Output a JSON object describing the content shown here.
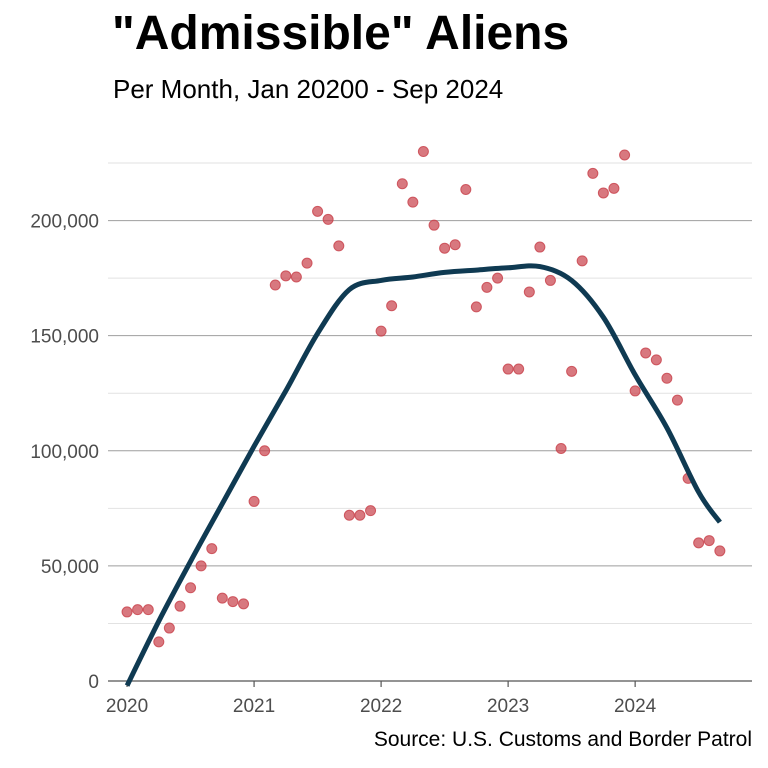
{
  "chart_data": {
    "type": "scatter",
    "title": "\"Admissible\" Aliens",
    "subtitle": "Per Month, Jan 20200 - Sep 2024",
    "source": "Source: U.S. Customs and Border Patrol",
    "xlabel": "",
    "ylabel": "",
    "xlim": [
      2019.85,
      2024.92
    ],
    "ylim": [
      0,
      235000
    ],
    "x_ticks": [
      2020,
      2021,
      2022,
      2023,
      2024
    ],
    "x_tick_labels": [
      "2020",
      "2021",
      "2022",
      "2023",
      "2024"
    ],
    "y_ticks": [
      0,
      50000,
      100000,
      150000,
      200000
    ],
    "y_tick_labels": [
      "0",
      "50,000",
      "100,000",
      "150,000",
      "200,000"
    ],
    "y_minor_ticks": [
      25000,
      75000,
      125000,
      175000,
      225000
    ],
    "grid": true,
    "legend": "none",
    "colors": {
      "points": "#c9444d",
      "trend": "#0f3a52",
      "grid_major": "#9e9e9e",
      "grid_minor": "#e2e2e2"
    },
    "series": [
      {
        "kind": "points",
        "x": [
          2020.0,
          2020.083,
          2020.167,
          2020.25,
          2020.333,
          2020.417,
          2020.5,
          2020.583,
          2020.667,
          2020.75,
          2020.833,
          2020.917,
          2021.0,
          2021.083,
          2021.167,
          2021.25,
          2021.333,
          2021.417,
          2021.5,
          2021.583,
          2021.667,
          2021.75,
          2021.833,
          2021.917,
          2022.0,
          2022.083,
          2022.167,
          2022.25,
          2022.333,
          2022.417,
          2022.5,
          2022.583,
          2022.667,
          2022.75,
          2022.833,
          2022.917,
          2023.0,
          2023.083,
          2023.167,
          2023.25,
          2023.333,
          2023.417,
          2023.5,
          2023.583,
          2023.667,
          2023.75,
          2023.833,
          2023.917,
          2024.0,
          2024.083,
          2024.167,
          2024.25,
          2024.333,
          2024.417,
          2024.5,
          2024.583,
          2024.667
        ],
        "y": [
          30000,
          31000,
          31000,
          17000,
          23000,
          32500,
          40500,
          50000,
          57500,
          36000,
          34500,
          33500,
          78000,
          100000,
          172000,
          176000,
          175500,
          181500,
          204000,
          200500,
          189000,
          72000,
          72000,
          74000,
          152000,
          163000,
          216000,
          208000,
          230000,
          198000,
          188000,
          189500,
          213500,
          162500,
          171000,
          175000,
          135500,
          135500,
          169000,
          188500,
          174000,
          101000,
          134500,
          182500,
          220500,
          212000,
          214000,
          228500,
          126000,
          142500,
          139500,
          131500,
          122000,
          88000,
          60000,
          61000,
          56500
        ]
      },
      {
        "kind": "trend",
        "x": [
          2020.0,
          2020.25,
          2020.5,
          2020.75,
          2021.0,
          2021.25,
          2021.5,
          2021.75,
          2022.0,
          2022.25,
          2022.5,
          2022.75,
          2023.0,
          2023.25,
          2023.5,
          2023.75,
          2024.0,
          2024.25,
          2024.5,
          2024.667
        ],
        "y": [
          -2000,
          26000,
          52000,
          77000,
          102000,
          126000,
          151000,
          170000,
          174000,
          175500,
          177500,
          178500,
          179500,
          180000,
          174000,
          158000,
          133000,
          110000,
          82000,
          69000
        ]
      }
    ]
  }
}
